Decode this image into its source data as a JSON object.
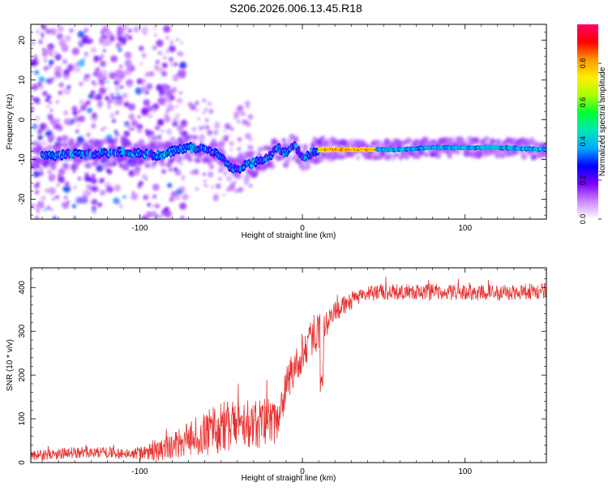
{
  "title": "S206.2026.006.13.45.R18",
  "colors": {
    "trace": "#e83232",
    "axis": "#000000",
    "colorbar_stops": [
      "#ffffff",
      "#cc88ff",
      "#7a00ff",
      "#0000ff",
      "#00aaff",
      "#00e5b8",
      "#00ff33",
      "#aaff00",
      "#ffee00",
      "#ff9900",
      "#ff0000",
      "#ff0066"
    ]
  },
  "chart_data": [
    {
      "type": "heatmap",
      "name": "spectrogram",
      "xlabel": "Height of straight line (km)",
      "ylabel": "Frequency (Hz)",
      "xlim": [
        -167,
        150
      ],
      "ylim": [
        -25,
        24
      ],
      "xticks": [
        -100,
        0,
        100
      ],
      "xtick_labels": [
        "-100",
        "0",
        "100"
      ],
      "yticks": [
        -20,
        -10,
        0,
        10,
        20
      ],
      "ytick_labels": [
        "-20",
        "-10",
        "0",
        "10",
        "20"
      ],
      "colorbar": {
        "label": "Normalized spectral amplitude",
        "range": [
          0,
          1
        ],
        "ticks": [
          0.0,
          0.2,
          0.4,
          0.6,
          0.8
        ],
        "tick_labels": [
          "0.0",
          "0.2",
          "0.4",
          "0.6",
          "0.8"
        ]
      },
      "ridge": {
        "description_points_x_km": [
          -155,
          -140,
          -125,
          -110,
          -100,
          -90,
          -80,
          -70,
          -60,
          -50,
          -45,
          -40,
          -35,
          -30,
          -25,
          -20,
          -15,
          -10,
          -5,
          0,
          10,
          20,
          40,
          60,
          80,
          100,
          120,
          150
        ],
        "frequency_hz": [
          -9,
          -8.5,
          -8.5,
          -8,
          -8.5,
          -9,
          -8,
          -7,
          -7.5,
          -9,
          -12,
          -12.5,
          -11.5,
          -11,
          -10,
          -9,
          -7,
          -8.5,
          -6.5,
          -9.5,
          -7.5,
          -7.5,
          -7.5,
          -7.5,
          -7,
          -7,
          -7,
          -7.5
        ]
      }
    },
    {
      "type": "line",
      "name": "snr",
      "xlabel": "Height of straight line (km)",
      "ylabel": "SNR (10 * v/v)",
      "xlim": [
        -167,
        150
      ],
      "ylim": [
        0,
        445
      ],
      "xticks": [
        -100,
        0,
        100
      ],
      "xtick_labels": [
        "-100",
        "0",
        "100"
      ],
      "yticks": [
        0,
        100,
        200,
        300,
        400
      ],
      "ytick_labels": [
        "0",
        "100",
        "200",
        "300",
        "400"
      ],
      "trend": {
        "x": [
          -167,
          -150,
          -130,
          -110,
          -95,
          -85,
          -75,
          -65,
          -55,
          -45,
          -35,
          -25,
          -15,
          -10,
          -5,
          0,
          5,
          10,
          15,
          20,
          25,
          30,
          40,
          50,
          60,
          80,
          100,
          120,
          150
        ],
        "y": [
          15,
          20,
          25,
          22,
          22,
          30,
          45,
          60,
          75,
          85,
          90,
          90,
          95,
          170,
          220,
          250,
          280,
          300,
          320,
          345,
          360,
          370,
          385,
          390,
          390,
          390,
          388,
          388,
          392
        ]
      },
      "noise_amplitude": {
        "x": [
          -167,
          -100,
          -80,
          -60,
          -40,
          -20,
          -10,
          0,
          10,
          20,
          40,
          100,
          150
        ],
        "y": [
          12,
          14,
          30,
          55,
          60,
          55,
          45,
          45,
          40,
          25,
          18,
          18,
          18
        ]
      }
    }
  ]
}
